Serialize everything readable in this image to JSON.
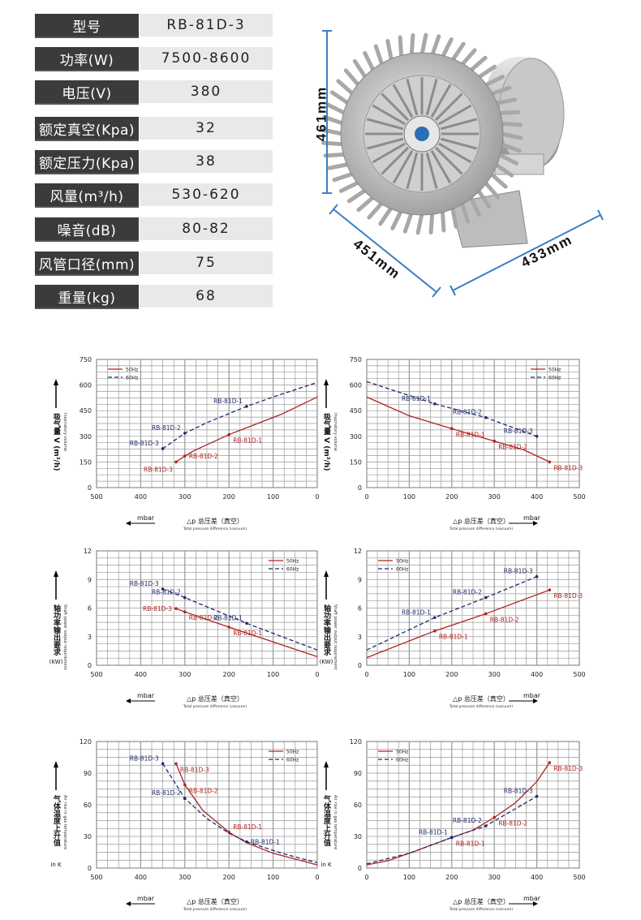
{
  "specs": [
    {
      "label": "型号",
      "value": "RB-81D-3"
    },
    {
      "label": "功率(W)",
      "value": "7500-8600"
    },
    {
      "label": "电压(V)",
      "value": "380"
    },
    {
      "label": "额定真空(Kpa)",
      "value": "32"
    },
    {
      "label": "额定压力(Kpa)",
      "value": "38"
    },
    {
      "label": "风量(m³/h)",
      "value": "530-620"
    },
    {
      "label": "噪音(dB)",
      "value": "80-82"
    },
    {
      "label": "风管口径(mm)",
      "value": "75"
    },
    {
      "label": "重量(kg)",
      "value": "68"
    }
  ],
  "dimensions": {
    "height": "461mm",
    "depth": "451mm",
    "width": "433mm",
    "line_color": "#3a7fc4"
  },
  "colors": {
    "s50": "#b22222",
    "s60": "#1f2a6b",
    "grid": "#9a9a9a"
  },
  "chart_data": [
    {
      "type": "line",
      "reversed": true,
      "ylim": [
        0,
        750
      ],
      "yticks": [
        0,
        150,
        300,
        450,
        600,
        750
      ],
      "xlim": [
        0,
        500
      ],
      "xticks": [
        500,
        400,
        300,
        200,
        100,
        0
      ],
      "ylabel_cn": "吸气量 V (m³/h)",
      "ylabel_en": "Inspiratory volume",
      "ylabel_unit": "",
      "xlabel_cn": "△p  总压差（真空）",
      "xlabel_en": "Total pressure difference (vacuum)",
      "xunit": "mbar",
      "legend": "top-left",
      "series": [
        {
          "name": "50Hz",
          "points": [
            [
              320,
              150
            ],
            [
              300,
              185
            ],
            [
              280,
              215
            ],
            [
              200,
              310
            ],
            [
              160,
              350
            ],
            [
              80,
              430
            ],
            [
              0,
              530
            ]
          ],
          "marks": [
            [
              200,
              310,
              "RB-81D-1"
            ],
            [
              300,
              185,
              "RB-81D-2"
            ],
            [
              320,
              150,
              "RB-81D-3"
            ]
          ]
        },
        {
          "name": "60Hz",
          "points": [
            [
              350,
              228
            ],
            [
              300,
              318
            ],
            [
              250,
              380
            ],
            [
              160,
              475
            ],
            [
              100,
              530
            ],
            [
              0,
              615
            ]
          ],
          "marks": [
            [
              160,
              475,
              "RB-81D-1"
            ],
            [
              300,
              318,
              "RB-81D-2"
            ],
            [
              350,
              228,
              "RB-81D-3"
            ]
          ]
        }
      ]
    },
    {
      "type": "line",
      "reversed": false,
      "ylim": [
        0,
        750
      ],
      "yticks": [
        0,
        150,
        300,
        450,
        600,
        750
      ],
      "xlim": [
        0,
        500
      ],
      "xticks": [
        0,
        100,
        200,
        300,
        400,
        500
      ],
      "ylabel_cn": "吸气量 V (m³/h)",
      "ylabel_en": "Inspiratory volume",
      "ylabel_unit": "",
      "xlabel_cn": "△p  总压差（真空）",
      "xlabel_en": "Total pressure difference (vacuum)",
      "xunit": "mbar",
      "legend": "top-right",
      "series": [
        {
          "name": "50Hz",
          "points": [
            [
              0,
              530
            ],
            [
              100,
              420
            ],
            [
              200,
              345
            ],
            [
              300,
              272
            ],
            [
              370,
              220
            ],
            [
              430,
              150
            ]
          ],
          "marks": [
            [
              200,
              345,
              "RB-81D-1"
            ],
            [
              300,
              272,
              "RB-81D-2"
            ],
            [
              430,
              150,
              "RB-81D-3"
            ]
          ]
        },
        {
          "name": "60Hz",
          "points": [
            [
              0,
              620
            ],
            [
              160,
              490
            ],
            [
              280,
              410
            ],
            [
              400,
              300
            ]
          ],
          "marks": [
            [
              160,
              490,
              "RB-81D-1"
            ],
            [
              280,
              410,
              "RB-81D-2"
            ],
            [
              400,
              300,
              "RB-81D-3"
            ]
          ]
        }
      ]
    },
    {
      "type": "line",
      "reversed": true,
      "ylim": [
        0,
        12
      ],
      "yticks": [
        0,
        3,
        6,
        9,
        12
      ],
      "xlim": [
        0,
        500
      ],
      "xticks": [
        500,
        400,
        300,
        200,
        100,
        0
      ],
      "ylabel_cn": "轴功率输出要求",
      "ylabel_en": "Shaft power output requirement",
      "ylabel_unit": "(KW)",
      "xlabel_cn": "△p  总压差（真空）",
      "xlabel_en": "Total pressure difference (vacuum)",
      "xunit": "mbar",
      "legend": "top-right",
      "series": [
        {
          "name": "50Hz",
          "points": [
            [
              320,
              5.95
            ],
            [
              300,
              5.6
            ],
            [
              200,
              4.0
            ],
            [
              0,
              0.9
            ]
          ],
          "marks": [
            [
              200,
              4.0,
              "RB-81D-1"
            ],
            [
              300,
              5.6,
              "RB-81D-2"
            ],
            [
              320,
              5.95,
              "RB-81D-3"
            ]
          ]
        },
        {
          "name": "60Hz",
          "points": [
            [
              350,
              8.0
            ],
            [
              300,
              7.1
            ],
            [
              160,
              4.4
            ],
            [
              0,
              1.6
            ]
          ],
          "marks": [
            [
              160,
              4.4,
              "RB-81D-1"
            ],
            [
              300,
              7.1,
              "RB-81D-2"
            ],
            [
              350,
              8.0,
              "RB-81D-3"
            ]
          ]
        }
      ]
    },
    {
      "type": "line",
      "reversed": false,
      "ylim": [
        0,
        12
      ],
      "yticks": [
        0,
        3,
        6,
        9,
        12
      ],
      "xlim": [
        0,
        500
      ],
      "xticks": [
        0,
        100,
        200,
        300,
        400,
        500
      ],
      "ylabel_cn": "轴功率输出要求",
      "ylabel_en": "Shaft power output requirement",
      "ylabel_unit": "(KW)",
      "xlabel_cn": "△p  总压差（真空）",
      "xlabel_en": "Total pressure difference (vacuum)",
      "xunit": "mbar",
      "legend": "top-left",
      "series": [
        {
          "name": "50Hz",
          "points": [
            [
              0,
              0.8
            ],
            [
              160,
              3.6
            ],
            [
              280,
              5.4
            ],
            [
              430,
              7.9
            ]
          ],
          "marks": [
            [
              160,
              3.6,
              "RB-81D-1"
            ],
            [
              280,
              5.4,
              "RB-81D-2"
            ],
            [
              430,
              7.9,
              "RB-81D-3"
            ]
          ]
        },
        {
          "name": "60Hz",
          "points": [
            [
              0,
              1.6
            ],
            [
              160,
              5.0
            ],
            [
              280,
              7.1
            ],
            [
              400,
              9.3
            ]
          ],
          "marks": [
            [
              160,
              5.0,
              "RB-81D-1"
            ],
            [
              280,
              7.1,
              "RB-81D-2"
            ],
            [
              400,
              9.3,
              "RB-81D-3"
            ]
          ]
        }
      ]
    },
    {
      "type": "line",
      "reversed": true,
      "ylim": [
        0,
        120
      ],
      "yticks": [
        0,
        30,
        60,
        90,
        120
      ],
      "xlim": [
        0,
        500
      ],
      "xticks": [
        500,
        400,
        300,
        200,
        100,
        0
      ],
      "ylabel_cn": "气体温度上升值",
      "ylabel_en": "Air rise in gas temperature",
      "ylabel_unit": "in K",
      "xlabel_cn": "△p  总压差（真空）",
      "xlabel_en": "Total pressure difference (vacuum)",
      "xunit": "mbar",
      "legend": "top-right",
      "series": [
        {
          "name": "50Hz",
          "points": [
            [
              320,
              99
            ],
            [
              300,
              79
            ],
            [
              260,
              55
            ],
            [
              200,
              34
            ],
            [
              160,
              24
            ],
            [
              100,
              14
            ],
            [
              0,
              3
            ]
          ],
          "marks": [
            [
              200,
              34,
              "RB-81D-1"
            ],
            [
              300,
              79,
              "RB-81D-2"
            ],
            [
              320,
              99,
              "RB-81D-3"
            ]
          ]
        },
        {
          "name": "60Hz",
          "points": [
            [
              350,
              99
            ],
            [
              300,
              66
            ],
            [
              250,
              47
            ],
            [
              200,
              33
            ],
            [
              160,
              25
            ],
            [
              80,
              14
            ],
            [
              0,
              5
            ]
          ],
          "marks": [
            [
              160,
              25,
              "RB-81D-1"
            ],
            [
              300,
              66,
              "RB-81D-2"
            ],
            [
              350,
              99,
              "RB-81D-3"
            ]
          ]
        }
      ]
    },
    {
      "type": "line",
      "reversed": false,
      "ylim": [
        0,
        120
      ],
      "yticks": [
        0,
        30,
        60,
        90,
        120
      ],
      "xlim": [
        0,
        500
      ],
      "xticks": [
        0,
        100,
        200,
        300,
        400,
        500
      ],
      "ylabel_cn": "气体温度上升值",
      "ylabel_en": "Air rise in gas temperature",
      "ylabel_unit": "in K",
      "xlabel_cn": "△p  总压差（真空）",
      "xlabel_en": "Total pressure difference (vacuum)",
      "xunit": "mbar",
      "legend": "top-left",
      "series": [
        {
          "name": "50Hz",
          "points": [
            [
              0,
              3
            ],
            [
              50,
              7
            ],
            [
              100,
              14
            ],
            [
              200,
              29
            ],
            [
              250,
              36
            ],
            [
              300,
              48
            ],
            [
              350,
              62
            ],
            [
              400,
              82
            ],
            [
              430,
              100
            ]
          ],
          "marks": [
            [
              200,
              29,
              "RB-81D-1"
            ],
            [
              300,
              48,
              "RB-81D-2"
            ],
            [
              430,
              100,
              "RB-81D-3"
            ]
          ]
        },
        {
          "name": "60Hz",
          "points": [
            [
              0,
              4
            ],
            [
              100,
              14
            ],
            [
              200,
              29
            ],
            [
              280,
              40
            ],
            [
              400,
              68
            ]
          ],
          "marks": [
            [
              200,
              29,
              "RB-81D-1"
            ],
            [
              280,
              40,
              "RB-81D-2"
            ],
            [
              400,
              68,
              "RB-81D-3"
            ]
          ]
        }
      ]
    }
  ]
}
